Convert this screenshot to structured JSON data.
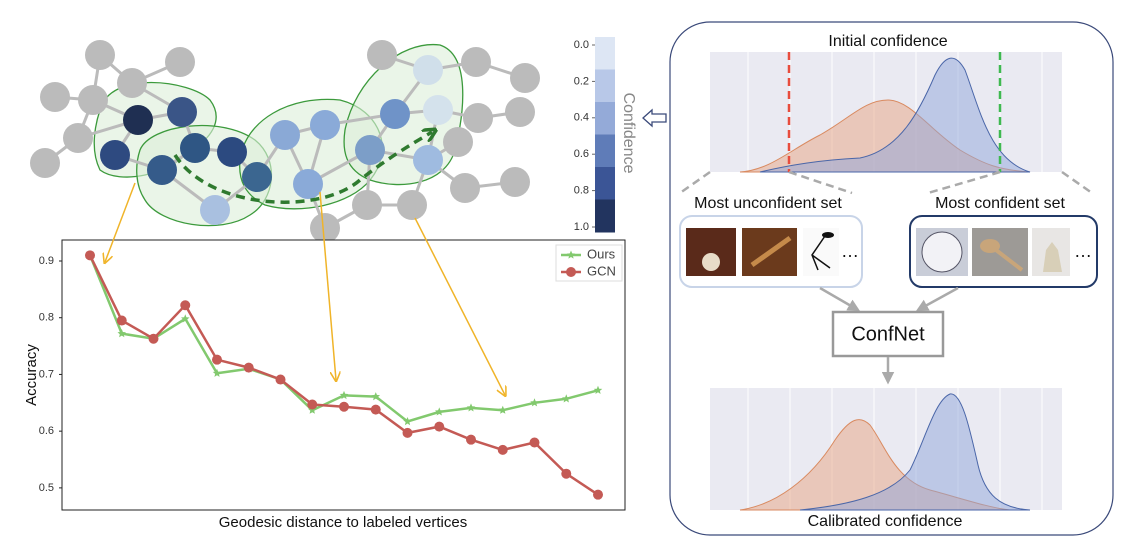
{
  "chart_data": {
    "type": "line",
    "categories": [
      null,
      null,
      null,
      null,
      null,
      null,
      null,
      null,
      null,
      null,
      null,
      null,
      null,
      null,
      null,
      null,
      null
    ],
    "series": [
      {
        "name": "Ours",
        "color": "#82c96e",
        "marker": "star",
        "values": [
          0.91,
          0.772,
          0.763,
          0.798,
          0.702,
          0.71,
          0.691,
          0.637,
          0.663,
          0.661,
          0.617,
          0.634,
          0.641,
          0.637,
          0.65,
          0.657,
          0.672
        ]
      },
      {
        "name": "GCN",
        "color": "#c45a55",
        "marker": "circle",
        "values": [
          0.91,
          0.795,
          0.763,
          0.822,
          0.726,
          0.712,
          0.691,
          0.647,
          0.643,
          0.638,
          0.597,
          0.608,
          0.585,
          0.567,
          0.58,
          0.525,
          0.488
        ]
      }
    ],
    "ylim": [
      0.461,
      0.937
    ],
    "yticks": [
      0.5,
      0.6,
      0.7,
      0.8,
      0.9
    ],
    "ylabel": "Accuracy",
    "xlabel": "Geodesic distance to labeled vertices",
    "legend": "upper right",
    "grid": false
  },
  "colorbar": {
    "label": "Confidence",
    "ticks": [
      {
        "value": 0,
        "label": "0.0"
      },
      0.2,
      0.4,
      0.6,
      0.8,
      {
        "value": 1,
        "label": "1.0"
      }
    ]
  },
  "pipeline": {
    "initial_title": "Initial confidence",
    "unconfident_title": "Most unconfident set",
    "confident_title": "Most confident set",
    "unconfident_more": "…",
    "confident_more": "…",
    "model": "ConfNet",
    "calibrated_title": "Calibrated confidence"
  }
}
